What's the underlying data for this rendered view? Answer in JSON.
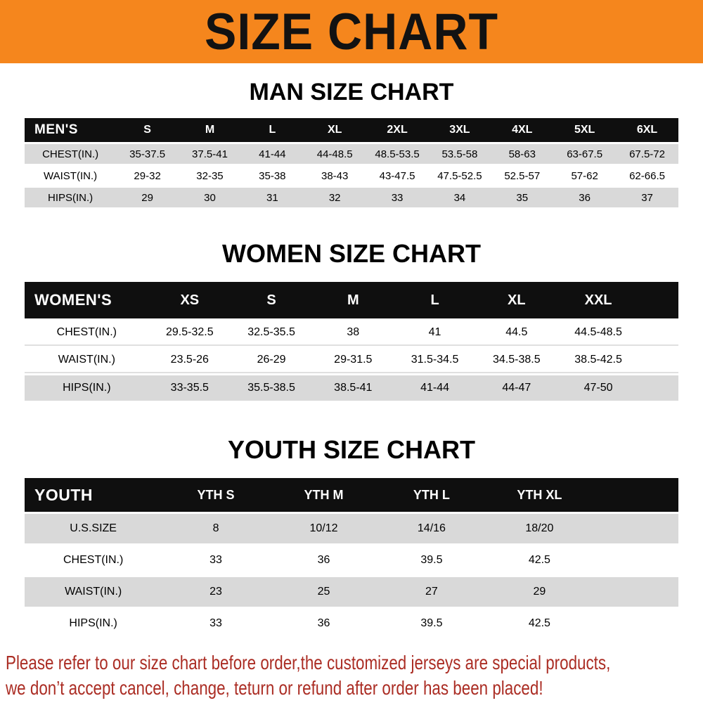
{
  "banner": {
    "title": "SIZE CHART",
    "bg_color": "#F5861D"
  },
  "sections": [
    {
      "heading": "MAN SIZE CHART",
      "table": {
        "header": [
          "MEN'S",
          "S",
          "M",
          "L",
          "XL",
          "2XL",
          "3XL",
          "4XL",
          "5XL",
          "6XL"
        ],
        "rows": [
          {
            "label": "CHEST(IN.)",
            "values": [
              "35-37.5",
              "37.5-41",
              "41-44",
              "44-48.5",
              "48.5-53.5",
              "53.5-58",
              "58-63",
              "63-67.5",
              "67.5-72"
            ]
          },
          {
            "label": "WAIST(IN.)",
            "values": [
              "29-32",
              "32-35",
              "35-38",
              "38-43",
              "43-47.5",
              "47.5-52.5",
              "52.5-57",
              "57-62",
              "62-66.5"
            ]
          },
          {
            "label": "HIPS(IN.)",
            "values": [
              "29",
              "30",
              "31",
              "32",
              "33",
              "34",
              "35",
              "36",
              "37"
            ]
          }
        ]
      }
    },
    {
      "heading": "WOMEN SIZE CHART",
      "table": {
        "header": [
          "WOMEN'S",
          "XS",
          "S",
          "M",
          "L",
          "XL",
          "XXL"
        ],
        "rows": [
          {
            "label": "CHEST(IN.)",
            "values": [
              "29.5-32.5",
              "32.5-35.5",
              "38",
              "41",
              "44.5",
              "44.5-48.5"
            ]
          },
          {
            "label": "WAIST(IN.)",
            "values": [
              "23.5-26",
              "26-29",
              "29-31.5",
              "31.5-34.5",
              "34.5-38.5",
              "38.5-42.5"
            ]
          },
          {
            "label": "HIPS(IN.)",
            "values": [
              "33-35.5",
              "35.5-38.5",
              "38.5-41",
              "41-44",
              "44-47",
              "47-50"
            ]
          }
        ]
      }
    },
    {
      "heading": "YOUTH SIZE CHART",
      "table": {
        "header": [
          "YOUTH",
          "YTH S",
          "YTH M",
          "YTH L",
          "YTH XL"
        ],
        "rows": [
          {
            "label": "U.S.SIZE",
            "values": [
              "8",
              "10/12",
              "14/16",
              "18/20"
            ]
          },
          {
            "label": "CHEST(IN.)",
            "values": [
              "33",
              "36",
              "39.5",
              "42.5"
            ]
          },
          {
            "label": "WAIST(IN.)",
            "values": [
              "23",
              "25",
              "27",
              "29"
            ]
          },
          {
            "label": "HIPS(IN.)",
            "values": [
              "33",
              "36",
              "39.5",
              "42.5"
            ]
          }
        ]
      }
    }
  ],
  "footer": {
    "line1": "Please refer to our size chart before order,the customized jerseys are special products,",
    "line2": "we don’t accept cancel, change, teturn or refund after order has been placed!",
    "text_color": "#AB2D24"
  }
}
